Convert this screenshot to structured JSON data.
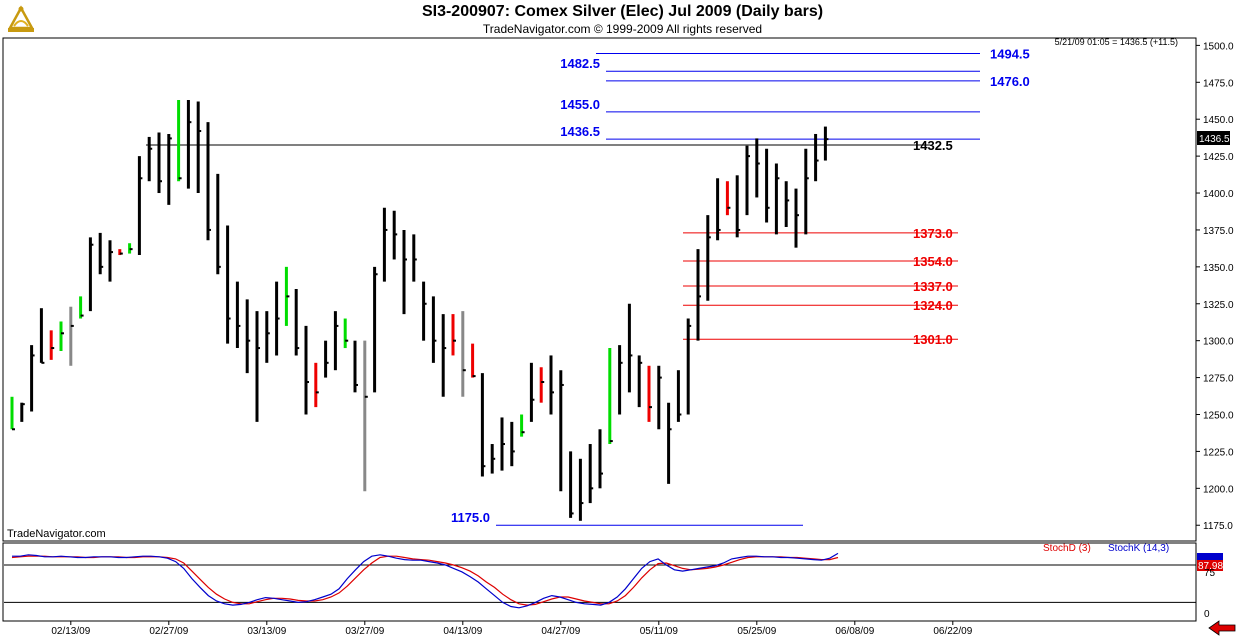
{
  "header": {
    "title": "SI3-200907:  Comex Silver (Elec) Jul 2009  (Daily bars)",
    "subtitle": "TradeNavigator.com © 1999-2009 All rights reserved"
  },
  "watermark": "TradeNavigator.com",
  "quote_line": "5/21/09 01:05 = 1436.5 (+11.5)",
  "last_price_label": "1436.5",
  "stoch_panel": {
    "legend_d": "StochD (3)",
    "legend_k": "StochK (14,3)",
    "axis_labels": [
      "75",
      "0"
    ],
    "value_label": "87.98",
    "colors": {
      "stoch_d": "#dd0000",
      "stoch_k": "#0000cc"
    }
  },
  "colors": {
    "bar_default": "#000000",
    "bar_up": "#00dd00",
    "bar_down": "#ee0000",
    "bar_neutral": "#888888",
    "resistance": "#0000ee",
    "support": "#ee0000",
    "panel_bg": "#ffffff",
    "axis_bg": "#ffffff"
  },
  "chart_data": {
    "type": "ohlc",
    "title": "SI3-200907:  Comex Silver (Elec) Jul 2009  (Daily bars)",
    "ylim": [
      1165,
      1505
    ],
    "y_ticks": [
      "1500.0",
      "1475.0",
      "1450.0",
      "1425.0",
      "1400.0",
      "1375.0",
      "1350.0",
      "1325.0",
      "1300.0",
      "1275.0",
      "1250.0",
      "1225.0",
      "1200.0",
      "1175.0"
    ],
    "x_tick_labels": [
      "02/13/09",
      "02/27/09",
      "03/13/09",
      "03/27/09",
      "04/13/09",
      "04/27/09",
      "05/11/09",
      "05/25/09",
      "06/08/09",
      "06/22/09"
    ],
    "x_tick_slots": [
      26,
      36,
      46,
      56,
      66,
      76,
      86,
      96,
      106,
      116
    ],
    "total_slots": 121,
    "bars": [
      {
        "h": 1262,
        "l": 1240,
        "c": 1240,
        "col": "up"
      },
      {
        "h": 1258,
        "l": 1245,
        "c": 1257,
        "col": "black"
      },
      {
        "h": 1297,
        "l": 1252,
        "c": 1290,
        "col": "black"
      },
      {
        "h": 1322,
        "l": 1285,
        "c": 1285,
        "col": "black"
      },
      {
        "h": 1307,
        "l": 1287,
        "c": 1295,
        "col": "down"
      },
      {
        "h": 1313,
        "l": 1293,
        "c": 1305,
        "col": "up"
      },
      {
        "h": 1323,
        "l": 1283,
        "c": 1310,
        "col": "neutral"
      },
      {
        "h": 1330,
        "l": 1315,
        "c": 1317,
        "col": "up"
      },
      {
        "h": 1370,
        "l": 1320,
        "c": 1365,
        "col": "black"
      },
      {
        "h": 1373,
        "l": 1345,
        "c": 1350,
        "col": "black"
      },
      {
        "h": 1368,
        "l": 1340,
        "c": 1360,
        "col": "black"
      },
      {
        "h": 1362,
        "l": 1358,
        "c": 1359,
        "col": "down"
      },
      {
        "h": 1366,
        "l": 1359,
        "c": 1362,
        "col": "up"
      },
      {
        "h": 1425,
        "l": 1358,
        "c": 1410,
        "col": "black"
      },
      {
        "h": 1438,
        "l": 1408,
        "c": 1430,
        "col": "black"
      },
      {
        "h": 1441,
        "l": 1400,
        "c": 1408,
        "col": "black"
      },
      {
        "h": 1440,
        "l": 1392,
        "c": 1437,
        "col": "black"
      },
      {
        "h": 1463,
        "l": 1408,
        "c": 1410,
        "col": "up"
      },
      {
        "h": 1463,
        "l": 1403,
        "c": 1448,
        "col": "black"
      },
      {
        "h": 1462,
        "l": 1400,
        "c": 1442,
        "col": "black"
      },
      {
        "h": 1448,
        "l": 1368,
        "c": 1375,
        "col": "black"
      },
      {
        "h": 1413,
        "l": 1345,
        "c": 1350,
        "col": "black"
      },
      {
        "h": 1378,
        "l": 1298,
        "c": 1315,
        "col": "black"
      },
      {
        "h": 1340,
        "l": 1295,
        "c": 1310,
        "col": "black"
      },
      {
        "h": 1328,
        "l": 1278,
        "c": 1300,
        "col": "black"
      },
      {
        "h": 1320,
        "l": 1245,
        "c": 1295,
        "col": "black"
      },
      {
        "h": 1320,
        "l": 1285,
        "c": 1305,
        "col": "black"
      },
      {
        "h": 1340,
        "l": 1290,
        "c": 1315,
        "col": "black"
      },
      {
        "h": 1350,
        "l": 1310,
        "c": 1330,
        "col": "up"
      },
      {
        "h": 1335,
        "l": 1290,
        "c": 1295,
        "col": "black"
      },
      {
        "h": 1310,
        "l": 1250,
        "c": 1272,
        "col": "black"
      },
      {
        "h": 1285,
        "l": 1255,
        "c": 1265,
        "col": "down"
      },
      {
        "h": 1300,
        "l": 1275,
        "c": 1285,
        "col": "black"
      },
      {
        "h": 1320,
        "l": 1280,
        "c": 1310,
        "col": "black"
      },
      {
        "h": 1315,
        "l": 1295,
        "c": 1300,
        "col": "up"
      },
      {
        "h": 1300,
        "l": 1265,
        "c": 1270,
        "col": "black"
      },
      {
        "h": 1300,
        "l": 1198,
        "c": 1262,
        "col": "neutral"
      },
      {
        "h": 1350,
        "l": 1265,
        "c": 1345,
        "col": "black"
      },
      {
        "h": 1390,
        "l": 1340,
        "c": 1375,
        "col": "black"
      },
      {
        "h": 1388,
        "l": 1355,
        "c": 1372,
        "col": "black"
      },
      {
        "h": 1375,
        "l": 1318,
        "c": 1355,
        "col": "black"
      },
      {
        "h": 1372,
        "l": 1340,
        "c": 1355,
        "col": "black"
      },
      {
        "h": 1340,
        "l": 1300,
        "c": 1325,
        "col": "black"
      },
      {
        "h": 1330,
        "l": 1285,
        "c": 1300,
        "col": "black"
      },
      {
        "h": 1318,
        "l": 1262,
        "c": 1295,
        "col": "black"
      },
      {
        "h": 1318,
        "l": 1290,
        "c": 1300,
        "col": "down"
      },
      {
        "h": 1320,
        "l": 1262,
        "c": 1280,
        "col": "neutral"
      },
      {
        "h": 1298,
        "l": 1275,
        "c": 1276,
        "col": "down"
      },
      {
        "h": 1278,
        "l": 1208,
        "c": 1215,
        "col": "black"
      },
      {
        "h": 1230,
        "l": 1210,
        "c": 1220,
        "col": "black"
      },
      {
        "h": 1248,
        "l": 1212,
        "c": 1230,
        "col": "black"
      },
      {
        "h": 1245,
        "l": 1215,
        "c": 1225,
        "col": "black"
      },
      {
        "h": 1250,
        "l": 1235,
        "c": 1238,
        "col": "up"
      },
      {
        "h": 1285,
        "l": 1245,
        "c": 1260,
        "col": "black"
      },
      {
        "h": 1282,
        "l": 1258,
        "c": 1272,
        "col": "down"
      },
      {
        "h": 1290,
        "l": 1250,
        "c": 1265,
        "col": "black"
      },
      {
        "h": 1280,
        "l": 1198,
        "c": 1270,
        "col": "black"
      },
      {
        "h": 1225,
        "l": 1180,
        "c": 1183,
        "col": "black"
      },
      {
        "h": 1220,
        "l": 1178,
        "c": 1190,
        "col": "black"
      },
      {
        "h": 1230,
        "l": 1190,
        "c": 1200,
        "col": "black"
      },
      {
        "h": 1240,
        "l": 1200,
        "c": 1210,
        "col": "black"
      },
      {
        "h": 1295,
        "l": 1230,
        "c": 1232,
        "col": "up"
      },
      {
        "h": 1297,
        "l": 1250,
        "c": 1285,
        "col": "black"
      },
      {
        "h": 1325,
        "l": 1265,
        "c": 1290,
        "col": "black"
      },
      {
        "h": 1290,
        "l": 1255,
        "c": 1285,
        "col": "black"
      },
      {
        "h": 1283,
        "l": 1245,
        "c": 1255,
        "col": "down"
      },
      {
        "h": 1283,
        "l": 1240,
        "c": 1275,
        "col": "black"
      },
      {
        "h": 1258,
        "l": 1203,
        "c": 1240,
        "col": "black"
      },
      {
        "h": 1280,
        "l": 1245,
        "c": 1250,
        "col": "black"
      },
      {
        "h": 1315,
        "l": 1250,
        "c": 1310,
        "col": "black"
      },
      {
        "h": 1362,
        "l": 1300,
        "c": 1330,
        "col": "black"
      },
      {
        "h": 1385,
        "l": 1327,
        "c": 1370,
        "col": "black"
      },
      {
        "h": 1410,
        "l": 1368,
        "c": 1375,
        "col": "black"
      },
      {
        "h": 1408,
        "l": 1385,
        "c": 1390,
        "col": "down"
      },
      {
        "h": 1412,
        "l": 1370,
        "c": 1375,
        "col": "black"
      },
      {
        "h": 1432,
        "l": 1385,
        "c": 1425,
        "col": "black"
      },
      {
        "h": 1437,
        "l": 1397,
        "c": 1420,
        "col": "black"
      },
      {
        "h": 1430,
        "l": 1380,
        "c": 1390,
        "col": "black"
      },
      {
        "h": 1420,
        "l": 1372,
        "c": 1410,
        "col": "black"
      },
      {
        "h": 1408,
        "l": 1377,
        "c": 1395,
        "col": "black"
      },
      {
        "h": 1403,
        "l": 1363,
        "c": 1385,
        "col": "black"
      },
      {
        "h": 1430,
        "l": 1372,
        "c": 1410,
        "col": "black"
      },
      {
        "h": 1440,
        "l": 1408,
        "c": 1422,
        "col": "black"
      },
      {
        "h": 1445,
        "l": 1422,
        "c": 1436.5,
        "col": "black"
      }
    ],
    "horizontal_levels": [
      {
        "value": 1494.5,
        "label": "1494.5",
        "color": "resistance",
        "label_side": "right"
      },
      {
        "value": 1482.5,
        "label": "1482.5",
        "color": "resistance",
        "label_side": "left"
      },
      {
        "value": 1476.0,
        "label": "1476.0",
        "color": "resistance",
        "label_side": "right"
      },
      {
        "value": 1455.0,
        "label": "1455.0",
        "color": "resistance",
        "label_side": "left"
      },
      {
        "value": 1436.5,
        "label": "1436.5",
        "color": "resistance",
        "label_side": "left"
      },
      {
        "value": 1432.5,
        "label": "1432.5",
        "color": "black",
        "label_side": "right"
      },
      {
        "value": 1373.0,
        "label": "1373.0",
        "color": "support",
        "label_side": "right"
      },
      {
        "value": 1354.0,
        "label": "1354.0",
        "color": "support",
        "label_side": "right"
      },
      {
        "value": 1337.0,
        "label": "1337.0",
        "color": "support",
        "label_side": "right"
      },
      {
        "value": 1324.0,
        "label": "1324.0",
        "color": "support",
        "label_side": "right"
      },
      {
        "value": 1301.0,
        "label": "1301.0",
        "color": "support",
        "label_side": "right"
      },
      {
        "value": 1175.0,
        "label": "1175.0",
        "color": "resistance",
        "label_side": "left"
      }
    ],
    "stoch_k": [
      88,
      88,
      90,
      89,
      87,
      87,
      88,
      87,
      86,
      86,
      87,
      87,
      87,
      86,
      86,
      87,
      88,
      88,
      87,
      85,
      80,
      70,
      55,
      42,
      30,
      22,
      18,
      16,
      17,
      20,
      24,
      27,
      26,
      24,
      22,
      20,
      21,
      24,
      28,
      32,
      40,
      55,
      68,
      80,
      88,
      90,
      88,
      85,
      83,
      82,
      82,
      80,
      78,
      75,
      70,
      65,
      58,
      50,
      40,
      30,
      20,
      14,
      12,
      15,
      20,
      26,
      30,
      28,
      24,
      20,
      18,
      17,
      16,
      20,
      28,
      40,
      55,
      70,
      80,
      84,
      75,
      68,
      66,
      68,
      70,
      72,
      74,
      78,
      84,
      86,
      88,
      88,
      87,
      87,
      86,
      86,
      85,
      84,
      83,
      82,
      85,
      92
    ],
    "stoch_d": [
      86,
      87,
      88,
      88,
      88,
      87,
      87,
      87,
      87,
      86,
      86,
      87,
      87,
      87,
      86,
      86,
      87,
      87,
      87,
      86,
      84,
      78,
      66,
      54,
      42,
      32,
      25,
      20,
      18,
      18,
      21,
      24,
      26,
      26,
      25,
      23,
      22,
      22,
      24,
      28,
      34,
      44,
      56,
      68,
      78,
      86,
      88,
      88,
      86,
      84,
      83,
      82,
      80,
      78,
      75,
      71,
      66,
      59,
      50,
      42,
      32,
      24,
      18,
      16,
      17,
      21,
      25,
      28,
      28,
      25,
      22,
      20,
      18,
      18,
      22,
      30,
      42,
      56,
      68,
      77,
      78,
      74,
      70,
      68,
      69,
      70,
      72,
      75,
      79,
      83,
      86,
      87,
      87,
      87,
      87,
      86,
      86,
      85,
      84,
      83,
      83,
      86
    ]
  }
}
